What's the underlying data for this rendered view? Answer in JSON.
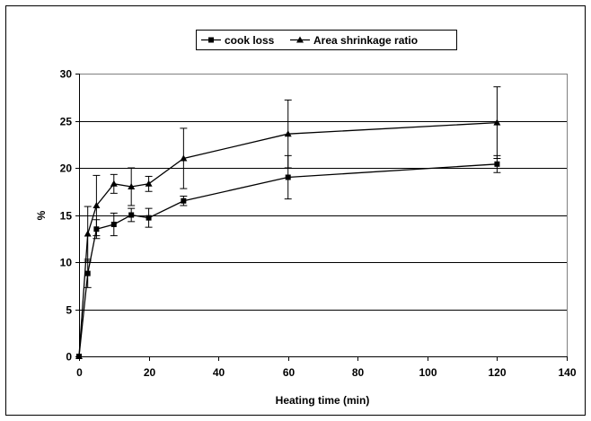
{
  "chart_data": {
    "type": "line",
    "title": "",
    "xlabel": "Heating time (min)",
    "ylabel": "%",
    "xlim": [
      0,
      140
    ],
    "ylim": [
      0,
      30
    ],
    "xticks": [
      0,
      20,
      40,
      60,
      80,
      100,
      120,
      140
    ],
    "yticks": [
      0,
      5,
      10,
      15,
      20,
      25,
      30
    ],
    "grid": "horizontal",
    "legend_position": "top",
    "x": [
      0,
      2.5,
      5,
      10,
      15,
      20,
      30,
      60,
      120
    ],
    "series": [
      {
        "name": "cook loss",
        "marker": "square",
        "color": "#000000",
        "values": [
          0,
          8.8,
          13.5,
          14.0,
          15.0,
          14.7,
          16.5,
          19.0,
          20.4
        ],
        "error": [
          0,
          1.5,
          1.0,
          1.2,
          0.7,
          1.0,
          0.5,
          2.3,
          0.9
        ]
      },
      {
        "name": "Area shrinkage ratio",
        "marker": "triangle",
        "color": "#000000",
        "values": [
          0,
          13.0,
          16.0,
          18.3,
          18.0,
          18.3,
          21.0,
          23.6,
          24.8
        ],
        "error": [
          0,
          2.9,
          3.2,
          1.0,
          2.0,
          0.8,
          3.2,
          3.6,
          3.8
        ]
      }
    ]
  }
}
